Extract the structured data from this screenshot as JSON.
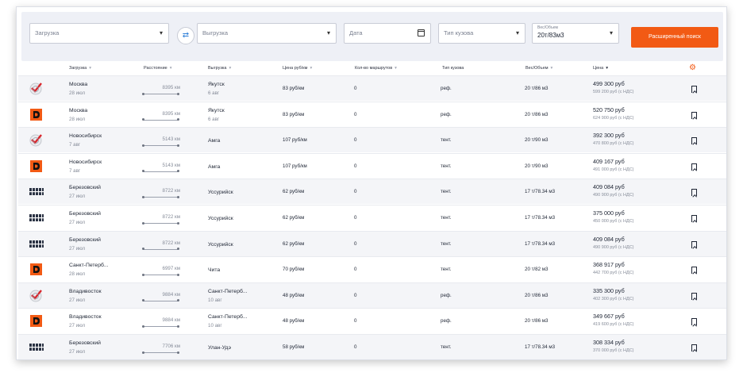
{
  "filters": {
    "loading_placeholder": "Загрузка",
    "unloading_placeholder": "Выгрузка",
    "date_placeholder": "Дата",
    "body_type_placeholder": "Тип кузова",
    "weight_volume_label": "Вес/Объем",
    "weight_volume_value": "20т/83м3",
    "advanced_search_label": "Расширенный поиск"
  },
  "columns": {
    "loading": "Загрузка",
    "distance": "Расстояние",
    "unloading": "Выгрузка",
    "price_per_km": "Цена руб/км",
    "routes_count": "Кол-во маршрутов",
    "body_type": "Тип кузова",
    "weight_volume": "Вес/Объем",
    "price": "Цена"
  },
  "rows": [
    {
      "logo": "check",
      "from": "Москва",
      "from_date": "28 июл",
      "distance": "8395 км",
      "to": "Якутск",
      "to_date": "6 авг",
      "price_km": "83 руб/км",
      "routes": "0",
      "body": "реф.",
      "weight": "20 т/86 м3",
      "price": "499 300 руб",
      "vat": "599 200 руб (с НДС)"
    },
    {
      "logo": "d",
      "from": "Москва",
      "from_date": "28 июл",
      "distance": "8395 км",
      "to": "Якутск",
      "to_date": "6 авг",
      "price_km": "83 руб/км",
      "routes": "0",
      "body": "реф.",
      "weight": "20 т/86 м3",
      "price": "520 750 руб",
      "vat": "624 900 руб (с НДС)"
    },
    {
      "logo": "check",
      "from": "Новосибирск",
      "from_date": "7 авг",
      "distance": "5143 км",
      "to": "Амга",
      "to_date": "",
      "price_km": "107 руб/км",
      "routes": "0",
      "body": "тент.",
      "weight": "20 т/90 м3",
      "price": "392 300 руб",
      "vat": "470 800 руб (с НДС)"
    },
    {
      "logo": "d",
      "from": "Новосибирск",
      "from_date": "7 авг",
      "distance": "5143 км",
      "to": "Амга",
      "to_date": "",
      "price_km": "107 руб/км",
      "routes": "0",
      "body": "тент.",
      "weight": "20 т/90 м3",
      "price": "409 167 руб",
      "vat": "491 000 руб (с НДС)"
    },
    {
      "logo": "sasmp",
      "from": "Березовский",
      "from_date": "27 июл",
      "distance": "8722 км",
      "to": "Уссурийск",
      "to_date": "",
      "price_km": "62 руб/км",
      "routes": "0",
      "body": "тент.",
      "weight": "17 т/78.34 м3",
      "price": "409 084 руб",
      "vat": "490 900 руб (с НДС)"
    },
    {
      "logo": "sasmp",
      "from": "Березовский",
      "from_date": "27 июл",
      "distance": "8722 км",
      "to": "Уссурийск",
      "to_date": "",
      "price_km": "62 руб/км",
      "routes": "0",
      "body": "тент.",
      "weight": "17 т/78.34 м3",
      "price": "375 000 руб",
      "vat": "450 000 руб (с НДС)"
    },
    {
      "logo": "sasmp",
      "from": "Березовский",
      "from_date": "27 июл",
      "distance": "8722 км",
      "to": "Уссурийск",
      "to_date": "",
      "price_km": "62 руб/км",
      "routes": "0",
      "body": "тент.",
      "weight": "17 т/78.34 м3",
      "price": "409 084 руб",
      "vat": "490 900 руб (с НДС)"
    },
    {
      "logo": "d",
      "from": "Санкт-Петерб...",
      "from_date": "28 июл",
      "distance": "6997 км",
      "to": "Чита",
      "to_date": "",
      "price_km": "70 руб/км",
      "routes": "0",
      "body": "тент.",
      "weight": "20 т/82 м3",
      "price": "368 917 руб",
      "vat": "442 700 руб (с НДС)"
    },
    {
      "logo": "check",
      "from": "Владивосток",
      "from_date": "27 июл",
      "distance": "9884 км",
      "to": "Санкт-Петерб...",
      "to_date": "10 авг",
      "price_km": "48 руб/км",
      "routes": "0",
      "body": "реф.",
      "weight": "20 т/86 м3",
      "price": "335 300 руб",
      "vat": "402 300 руб (с НДС)"
    },
    {
      "logo": "d",
      "from": "Владивосток",
      "from_date": "27 июл",
      "distance": "9884 км",
      "to": "Санкт-Петерб...",
      "to_date": "10 авг",
      "price_km": "48 руб/км",
      "routes": "0",
      "body": "реф.",
      "weight": "20 т/86 м3",
      "price": "349 667 руб",
      "vat": "419 600 руб (с НДС)"
    },
    {
      "logo": "sasmp",
      "from": "Березовский",
      "from_date": "27 июл",
      "distance": "7706 км",
      "to": "Улан-Удэ",
      "to_date": "",
      "price_km": "58 руб/км",
      "routes": "0",
      "body": "тент.",
      "weight": "17 т/78.34 м3",
      "price": "308 334 руб",
      "vat": "370 000 руб (с НДС)"
    }
  ],
  "colors": {
    "accent": "#f25a14",
    "swap_blue": "#2f7fd8",
    "check_red": "#d8262c"
  }
}
